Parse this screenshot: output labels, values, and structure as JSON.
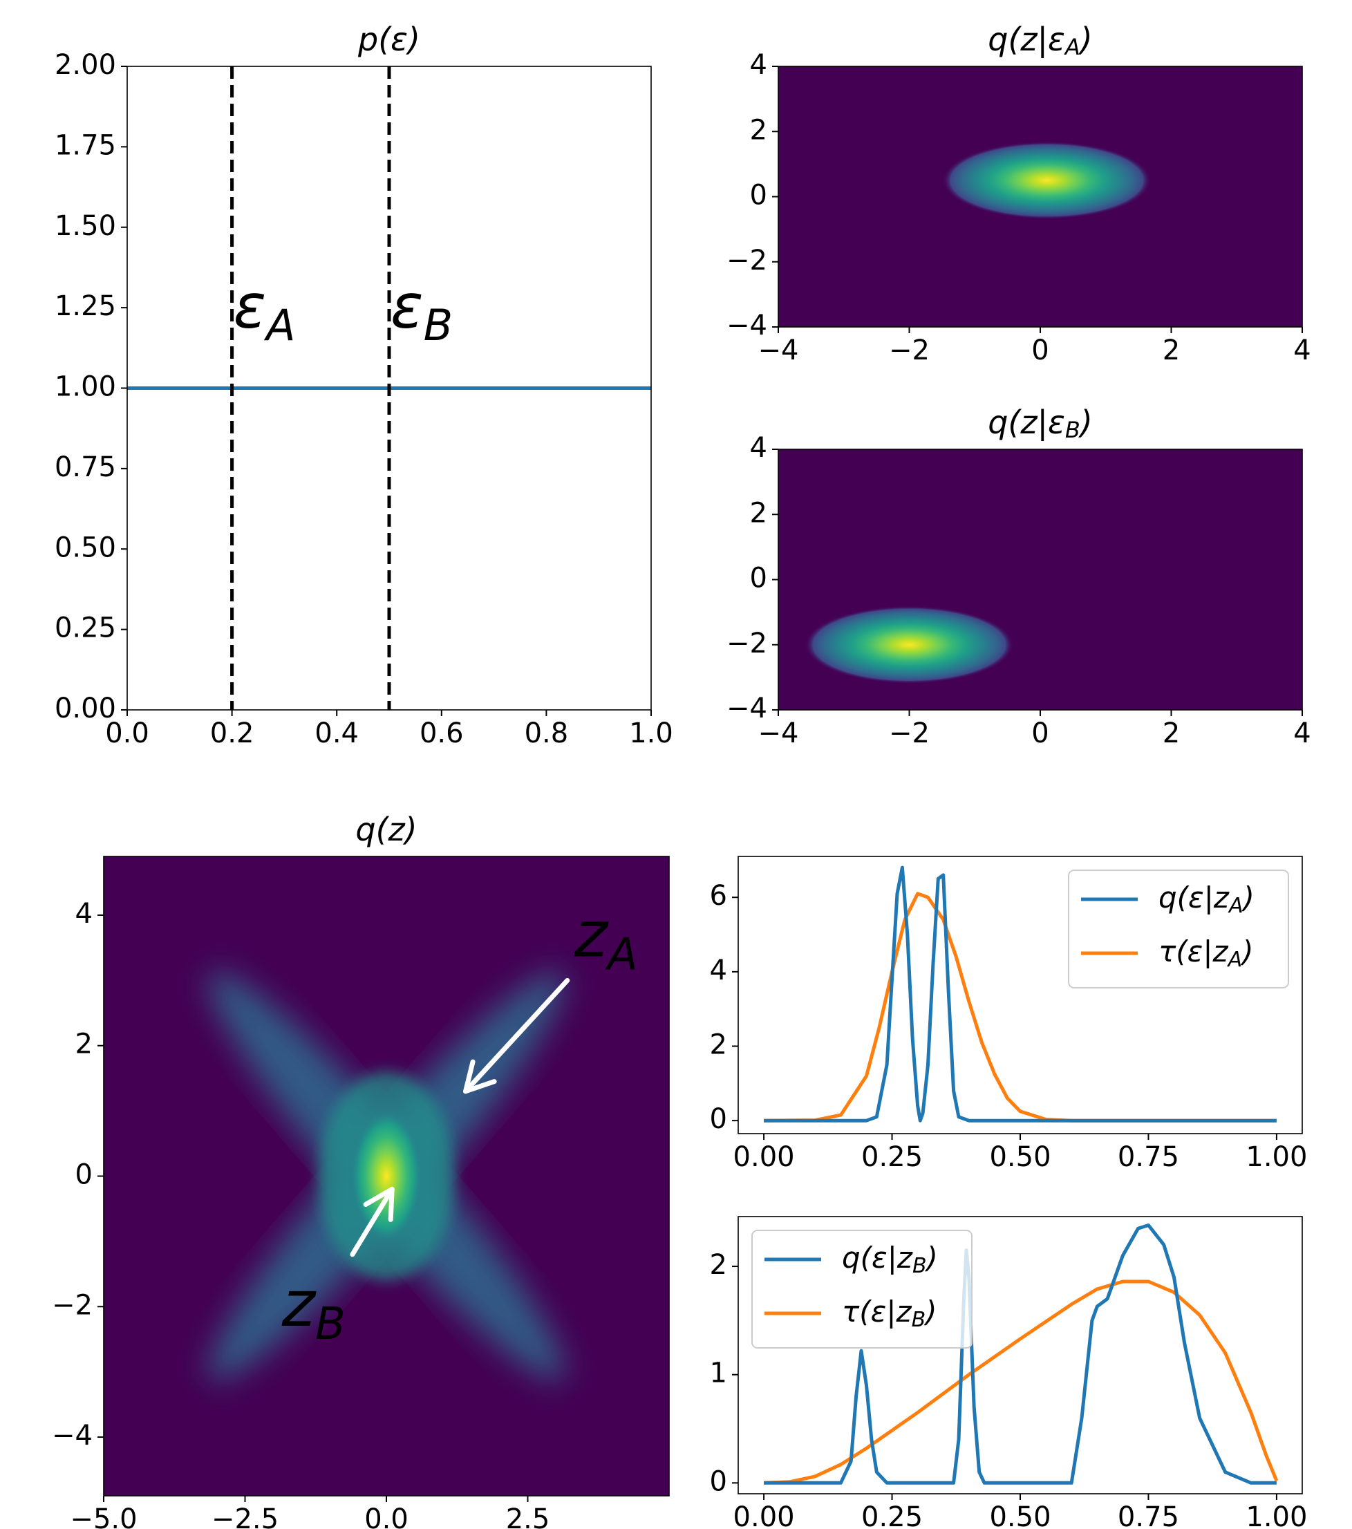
{
  "chart_data": [
    {
      "type": "line",
      "title": "p(ε)",
      "xlim": [
        0.0,
        1.0
      ],
      "ylim": [
        0.0,
        2.0
      ],
      "x_ticks": [
        "0.0",
        "0.2",
        "0.4",
        "0.6",
        "0.8",
        "1.0"
      ],
      "y_ticks": [
        "0.00",
        "0.25",
        "0.50",
        "0.75",
        "1.00",
        "1.25",
        "1.50",
        "1.75",
        "2.00"
      ],
      "series": [
        {
          "x": [
            0.0,
            1.0
          ],
          "y": [
            1.0,
            1.0
          ],
          "color": "#1f77b4"
        }
      ],
      "vlines": [
        {
          "x": 0.2,
          "label": "ε",
          "sub": "A",
          "style": "dashed",
          "color": "#000000"
        },
        {
          "x": 0.5,
          "label": "ε",
          "sub": "B",
          "style": "dashed",
          "color": "#000000"
        }
      ]
    },
    {
      "type": "heatmap",
      "title": "q(z|ε",
      "title_sub": "A",
      "xlim": [
        -4,
        4
      ],
      "ylim": [
        -4,
        4
      ],
      "x_ticks": [
        "−4",
        "−2",
        "0",
        "2",
        "4"
      ],
      "y_ticks": [
        "−4",
        "−2",
        "0",
        "2",
        "4"
      ],
      "colormap": "viridis",
      "background": "#440154",
      "blob": {
        "center": [
          0.1,
          0.5
        ],
        "sd": [
          0.55,
          0.35
        ]
      }
    },
    {
      "type": "heatmap",
      "title": "q(z|ε",
      "title_sub": "B",
      "xlim": [
        -4,
        4
      ],
      "ylim": [
        -4,
        4
      ],
      "x_ticks": [
        "−4",
        "−2",
        "0",
        "2",
        "4"
      ],
      "y_ticks": [
        "−4",
        "−2",
        "0",
        "2",
        "4"
      ],
      "colormap": "viridis",
      "background": "#440154",
      "blob": {
        "center": [
          -2.0,
          -2.0
        ],
        "sd": [
          0.55,
          0.35
        ]
      }
    },
    {
      "type": "heatmap",
      "title": "q(z)",
      "xlim": [
        -5.0,
        5.0
      ],
      "ylim": [
        -4.9,
        4.9
      ],
      "x_ticks": [
        "−5.0",
        "−2.5",
        "0.0",
        "2.5"
      ],
      "y_ticks": [
        "−4",
        "−2",
        "0",
        "2",
        "4"
      ],
      "colormap": "viridis",
      "background": "#440154",
      "annotations": [
        {
          "text": "z",
          "sub": "A",
          "color": "#ffffff",
          "arrow_from": [
            3.2,
            3.0
          ],
          "arrow_to": [
            1.4,
            1.3
          ]
        },
        {
          "text": "z",
          "sub": "B",
          "color": "#ffffff",
          "arrow_from": [
            -0.6,
            -1.2
          ],
          "arrow_to": [
            0.1,
            -0.2
          ]
        }
      ]
    },
    {
      "type": "line",
      "xlim": [
        -0.05,
        1.05
      ],
      "ylim": [
        -0.35,
        7.1
      ],
      "x_ticks": [
        "0.00",
        "0.25",
        "0.50",
        "0.75",
        "1.00"
      ],
      "y_ticks": [
        "0",
        "2",
        "4",
        "6"
      ],
      "legend": "top-right",
      "series": [
        {
          "name": "q(ε|z",
          "name_sub": "A",
          "color": "#1f77b4",
          "x": [
            0.0,
            0.2,
            0.22,
            0.24,
            0.25,
            0.26,
            0.27,
            0.28,
            0.29,
            0.3,
            0.305,
            0.31,
            0.32,
            0.33,
            0.34,
            0.35,
            0.36,
            0.37,
            0.38,
            0.4,
            0.5,
            1.0
          ],
          "y": [
            0,
            0,
            0.1,
            1.5,
            3.8,
            6.1,
            6.8,
            5.0,
            2.2,
            0.4,
            0.0,
            0.2,
            1.5,
            4.2,
            6.5,
            6.6,
            3.5,
            0.8,
            0.1,
            0,
            0,
            0
          ]
        },
        {
          "name": "τ(ε|z",
          "name_sub": "A",
          "color": "#ff7f0e",
          "x": [
            0.0,
            0.1,
            0.15,
            0.2,
            0.225,
            0.25,
            0.275,
            0.3,
            0.32,
            0.35,
            0.375,
            0.4,
            0.425,
            0.45,
            0.475,
            0.5,
            0.55,
            0.6,
            0.7,
            1.0
          ],
          "y": [
            0,
            0.01,
            0.15,
            1.2,
            2.5,
            4.0,
            5.4,
            6.1,
            6.0,
            5.4,
            4.4,
            3.2,
            2.1,
            1.25,
            0.6,
            0.25,
            0.03,
            0,
            0,
            0
          ]
        }
      ]
    },
    {
      "type": "line",
      "xlim": [
        -0.05,
        1.05
      ],
      "ylim": [
        -0.1,
        2.46
      ],
      "x_ticks": [
        "0.00",
        "0.25",
        "0.50",
        "0.75",
        "1.00"
      ],
      "y_ticks": [
        "0",
        "1",
        "2"
      ],
      "legend": "top-left",
      "series": [
        {
          "name": "q(ε|z",
          "name_sub": "B",
          "color": "#1f77b4",
          "x": [
            0.0,
            0.15,
            0.17,
            0.18,
            0.19,
            0.2,
            0.21,
            0.22,
            0.24,
            0.37,
            0.38,
            0.39,
            0.395,
            0.4,
            0.41,
            0.42,
            0.43,
            0.6,
            0.62,
            0.64,
            0.65,
            0.67,
            0.7,
            0.73,
            0.75,
            0.78,
            0.8,
            0.82,
            0.85,
            0.9,
            0.95,
            1.0
          ],
          "y": [
            0,
            0,
            0.2,
            0.8,
            1.22,
            0.9,
            0.4,
            0.1,
            0,
            0,
            0.4,
            1.7,
            2.15,
            1.9,
            0.7,
            0.1,
            0,
            0,
            0.6,
            1.5,
            1.63,
            1.7,
            2.1,
            2.35,
            2.38,
            2.2,
            1.9,
            1.3,
            0.6,
            0.1,
            0,
            0
          ]
        },
        {
          "name": "τ(ε|z",
          "name_sub": "B",
          "color": "#ff7f0e",
          "x": [
            0.0,
            0.05,
            0.1,
            0.15,
            0.2,
            0.3,
            0.4,
            0.5,
            0.6,
            0.65,
            0.7,
            0.75,
            0.8,
            0.85,
            0.9,
            0.95,
            0.98,
            1.0
          ],
          "y": [
            0,
            0.01,
            0.06,
            0.17,
            0.32,
            0.65,
            1.0,
            1.33,
            1.65,
            1.79,
            1.86,
            1.86,
            1.76,
            1.55,
            1.2,
            0.65,
            0.25,
            0.02
          ]
        }
      ]
    }
  ]
}
